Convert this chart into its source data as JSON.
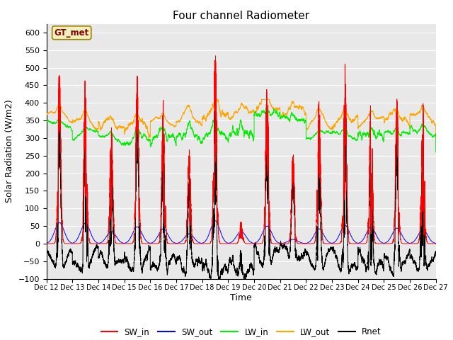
{
  "title": "Four channel Radiometer",
  "xlabel": "Time",
  "ylabel": "Solar Radiation (W/m2)",
  "ylim": [
    -100,
    625
  ],
  "yticks": [
    -100,
    -50,
    0,
    50,
    100,
    150,
    200,
    250,
    300,
    350,
    400,
    450,
    500,
    550,
    600
  ],
  "x_tick_labels": [
    "Dec 12",
    "Dec 13",
    "Dec 14",
    "Dec 15",
    "Dec 16",
    "Dec 17",
    "Dec 18",
    "Dec 19",
    "Dec 20",
    "Dec 21",
    "Dec 22",
    "Dec 23",
    "Dec 24",
    "Dec 25",
    "Dec 26",
    "Dec 27"
  ],
  "annotation_text": "GT_met",
  "annotation_bg": "#f0f0c0",
  "annotation_border": "#a08000",
  "colors": {
    "SW_in": "#ff0000",
    "SW_out": "#0000ff",
    "LW_in": "#00ee00",
    "LW_out": "#ffa500",
    "Rnet": "#000000"
  },
  "bg_color": "#e8e8e8",
  "grid_color": "#ffffff",
  "n_points": 7200,
  "n_days": 15,
  "sw_in_peaks": [
    510,
    495,
    335,
    490,
    410,
    275,
    570,
    65,
    480,
    265,
    420,
    515,
    430,
    420,
    415
  ],
  "sw_out_peaks": [
    60,
    58,
    35,
    48,
    42,
    28,
    65,
    35,
    50,
    12,
    42,
    52,
    47,
    44,
    40
  ],
  "lw_in_base": [
    325,
    300,
    285,
    285,
    290,
    295,
    300,
    300,
    355,
    340,
    295,
    295,
    295,
    300,
    305
  ],
  "lw_out_base": [
    350,
    330,
    320,
    320,
    330,
    340,
    355,
    355,
    375,
    360,
    330,
    335,
    335,
    340,
    345
  ],
  "night_rnet": -25
}
